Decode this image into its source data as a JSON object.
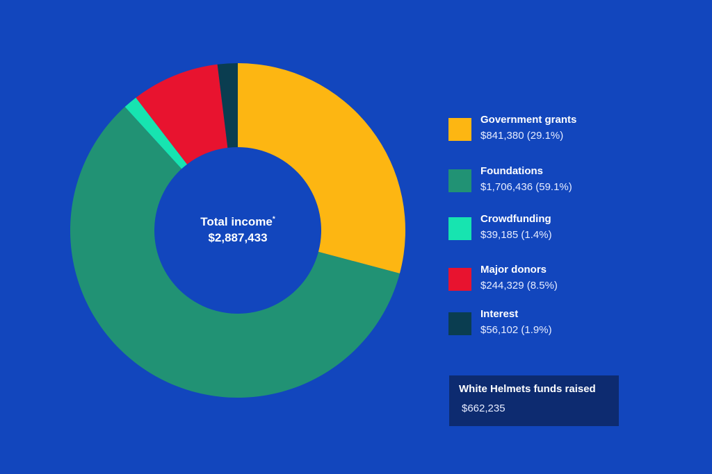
{
  "chart_data": {
    "type": "pie",
    "variant": "donut",
    "center_label": "Total income",
    "center_footnote_mark": "*",
    "center_value": "$2,887,433",
    "total": 2887433,
    "legend_position": "right",
    "slices": [
      {
        "name": "Government grants",
        "value": 841380,
        "percent": 29.1,
        "display": "$841,380 (29.1%)",
        "color": "#fdb612"
      },
      {
        "name": "Foundations",
        "value": 1706436,
        "percent": 59.1,
        "display": "$1,706,436 (59.1%)",
        "color": "#219274"
      },
      {
        "name": "Crowdfunding",
        "value": 39185,
        "percent": 1.4,
        "display": "$39,185 (1.4%)",
        "color": "#17e4b0"
      },
      {
        "name": "Major donors",
        "value": 244329,
        "percent": 8.5,
        "display": "$244,329 (8.5%)",
        "color": "#e8132f"
      },
      {
        "name": "Interest",
        "value": 56102,
        "percent": 1.9,
        "display": "$56,102 (1.9%)",
        "color": "#0a3d50"
      }
    ]
  },
  "info_box": {
    "title": "White Helmets funds raised",
    "value": "$662,235"
  },
  "colors": {
    "background": "#1246bd",
    "info_box": "#0d2b70"
  }
}
